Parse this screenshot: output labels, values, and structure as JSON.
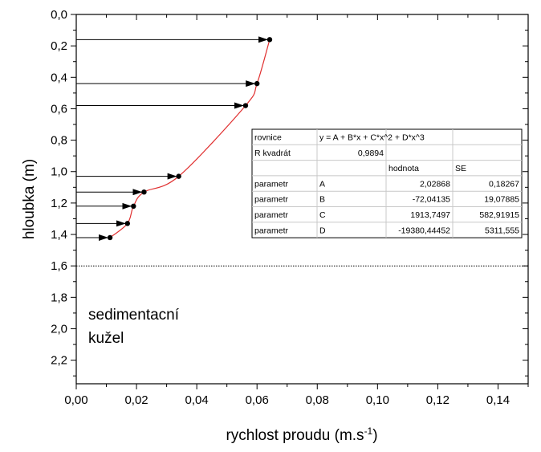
{
  "chart_data": {
    "type": "scatter",
    "title": "",
    "xlabel": "rychlost proudu (m.s",
    "xlabel_sup": "-1",
    "xlabel_close": ")",
    "ylabel": "hloubka (m)",
    "xlim": [
      0,
      0.15
    ],
    "ylim": [
      0,
      2.35
    ],
    "y_inverted": true,
    "x_ticks": [
      "0,00",
      "0,02",
      "0,04",
      "0,06",
      "0,08",
      "0,10",
      "0,12",
      "0,14"
    ],
    "x_tick_values": [
      0,
      0.02,
      0.04,
      0.06,
      0.08,
      0.1,
      0.12,
      0.14
    ],
    "y_ticks": [
      "0,0",
      "0,2",
      "0,4",
      "0,6",
      "0,8",
      "1,0",
      "1,2",
      "1,4",
      "1,6",
      "1,8",
      "2,0",
      "2,2"
    ],
    "y_tick_values": [
      0,
      0.2,
      0.4,
      0.6,
      0.8,
      1.0,
      1.2,
      1.4,
      1.6,
      1.8,
      2.0,
      2.2
    ],
    "points": [
      {
        "x": 0.0642,
        "y": 0.16
      },
      {
        "x": 0.06,
        "y": 0.44
      },
      {
        "x": 0.0562,
        "y": 0.58
      },
      {
        "x": 0.034,
        "y": 1.03
      },
      {
        "x": 0.0225,
        "y": 1.13
      },
      {
        "x": 0.019,
        "y": 1.22
      },
      {
        "x": 0.017,
        "y": 1.33
      },
      {
        "x": 0.0112,
        "y": 1.42
      }
    ],
    "arrows_from_x": 0,
    "fit_curve": {
      "name": "fit",
      "color": "#e03030",
      "y_range": [
        0.16,
        1.44
      ]
    },
    "reference_line": {
      "y": 1.6,
      "style": "dotted"
    },
    "annotation": [
      "sedimentacní",
      "kužel"
    ],
    "fit_table": {
      "rows": [
        [
          "rovnice",
          "y = A + B*x + C*x^2 + D*x^3",
          "",
          ""
        ],
        [
          "R kvadrát",
          "0,9894",
          "",
          ""
        ],
        [
          "",
          "",
          "hodnota",
          "SE"
        ],
        [
          "parametr",
          "A",
          "2,02868",
          "0,18267"
        ],
        [
          "parametr",
          "B",
          "-72,04135",
          "19,07885"
        ],
        [
          "parametr",
          "C",
          "1913,7497",
          "582,91915"
        ],
        [
          "parametr",
          "D",
          "-19380,44452",
          "5311,555"
        ]
      ],
      "coefficients": {
        "A": 2.02868,
        "B": -72.04135,
        "C": 1913.7497,
        "D": -19380.44452
      }
    }
  }
}
